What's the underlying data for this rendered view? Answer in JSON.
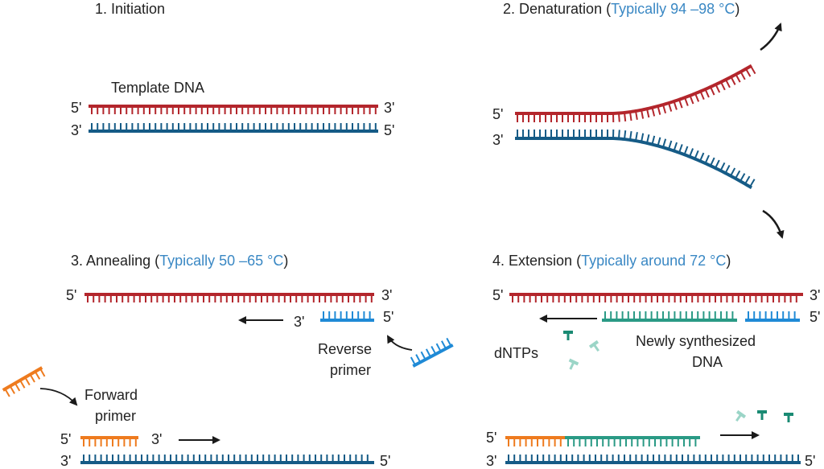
{
  "colors": {
    "template_top": "#b3262c",
    "template_bottom": "#155b86",
    "reverse_primer": "#1f8ad6",
    "forward_primer": "#ee7b1e",
    "new_dna": "#2a9a85",
    "dntp": "#1a8a73",
    "dntp_light": "#9bd5c7",
    "temp_text": "#3a88c4",
    "arrow": "#1a1a1a"
  },
  "icons": {
    "arrow": "arrow-icon",
    "dntp": "dntp-nucleotide-icon"
  },
  "step1": {
    "title": "1. Initiation",
    "label_template": "Template DNA",
    "top_left": "5'",
    "top_right": "3'",
    "bottom_left": "3'",
    "bottom_right": "5'"
  },
  "step2": {
    "title_prefix": "2. Denaturation (",
    "temp": "Typically 94 –98 °C",
    "title_suffix": ")",
    "top_left": "5'",
    "bottom_left": "3'"
  },
  "step3": {
    "title_prefix": "3. Annealing (",
    "temp": "Typically 50 –65 °C",
    "title_suffix": ")",
    "top_left": "5'",
    "top_right": "3'",
    "rev_3": "3'",
    "rev_5": "5'",
    "reverse_primer": [
      "Reverse",
      "primer"
    ],
    "forward_primer": [
      "Forward",
      "primer"
    ],
    "fwd_5": "5'",
    "fwd_3": "3'",
    "bottom_left": "3'",
    "bottom_right": "5'"
  },
  "step4": {
    "title_prefix": "4. Extension (",
    "temp": "Typically around 72 °C",
    "title_suffix": ")",
    "top_left": "5'",
    "top_right": "3'",
    "top_right2": "5'",
    "dntps": "dNTPs",
    "new_dna": [
      "Newly synthesized",
      "DNA"
    ],
    "bottom_left5": "5'",
    "bottom_left3": "3'",
    "bottom_right": "5'"
  }
}
